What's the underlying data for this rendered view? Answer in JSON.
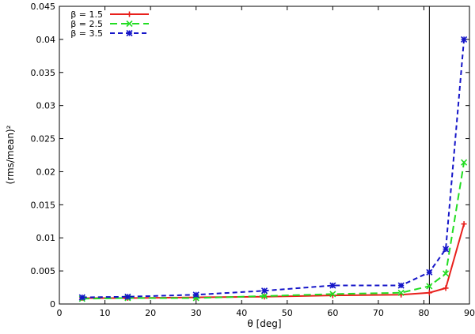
{
  "chart_data": {
    "type": "line",
    "xlabel": "θ [deg]",
    "ylabel": "(rms/mean)²",
    "xlim": [
      0,
      90
    ],
    "ylim": [
      0,
      0.045
    ],
    "x_ticks": [
      0,
      10,
      20,
      30,
      40,
      50,
      60,
      70,
      80,
      90
    ],
    "x_tick_labels": [
      "0",
      "10",
      "20",
      "30",
      "40",
      "50",
      "60",
      "70",
      "80",
      "90"
    ],
    "y_ticks": [
      0,
      0.005,
      0.01,
      0.015,
      0.02,
      0.025,
      0.03,
      0.035,
      0.04,
      0.045
    ],
    "y_tick_labels": [
      "0",
      "0.005",
      "0.01",
      "0.015",
      "0.02",
      "0.025",
      "0.03",
      "0.035",
      "0.04",
      "0.045"
    ],
    "grid": false,
    "legend_position": "top-left",
    "vertical_line_x": 81.2,
    "x": [
      5,
      15,
      30,
      45,
      60,
      75,
      81.2,
      84.8,
      88.8
    ],
    "series": [
      {
        "name": "β = 1.5",
        "color": "#e8201c",
        "marker": "plus",
        "dash": "solid",
        "values": [
          0.0009,
          0.0009,
          0.001,
          0.0011,
          0.0013,
          0.0014,
          0.0017,
          0.0024,
          0.0121
        ]
      },
      {
        "name": "β = 2.5",
        "color": "#22dd22",
        "marker": "cross",
        "dash": "long",
        "values": [
          0.0008,
          0.0009,
          0.0009,
          0.0012,
          0.0015,
          0.0017,
          0.0027,
          0.0046,
          0.0214
        ]
      },
      {
        "name": "β = 3.5",
        "color": "#1515c8",
        "marker": "star",
        "dash": "short",
        "values": [
          0.001,
          0.0011,
          0.0014,
          0.002,
          0.0028,
          0.0028,
          0.0048,
          0.0083,
          0.04
        ]
      }
    ]
  }
}
